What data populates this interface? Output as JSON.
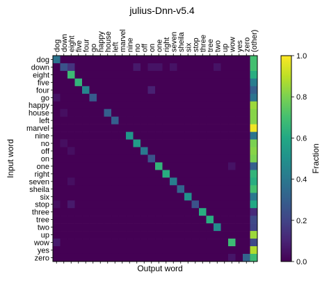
{
  "chart_data": {
    "type": "heatmap",
    "title": "julius-Dnn-v5.4",
    "xlabel": "Output word",
    "ylabel": "Input word",
    "colorbar_label": "Fraction",
    "colormap": "viridis",
    "clim": [
      0,
      1
    ],
    "colorbar_ticks": [
      "0.0",
      "0.2",
      "0.4",
      "0.6",
      "0.8",
      "1.0"
    ],
    "x_labels": [
      "dog",
      "down",
      "eight",
      "five",
      "four",
      "go",
      "happy",
      "house",
      "left",
      "marvel",
      "nine",
      "no",
      "off",
      "on",
      "one",
      "right",
      "seven",
      "sheila",
      "six",
      "stop",
      "three",
      "tree",
      "two",
      "up",
      "wow",
      "yes",
      "zero",
      "(other)"
    ],
    "y_labels": [
      "dog",
      "down",
      "eight",
      "five",
      "four",
      "go",
      "happy",
      "house",
      "left",
      "marvel",
      "nine",
      "no",
      "off",
      "on",
      "one",
      "right",
      "seven",
      "sheila",
      "six",
      "stop",
      "three",
      "tree",
      "two",
      "up",
      "wow",
      "yes",
      "zero"
    ],
    "diagonal": [
      0.38,
      0.25,
      0.68,
      0.65,
      0.45,
      0.28,
      0.0,
      0.3,
      0.3,
      0.0,
      0.52,
      0.55,
      0.4,
      0.25,
      0.65,
      0.62,
      0.42,
      0.32,
      0.5,
      0.25,
      0.62,
      0.62,
      0.48,
      0.0,
      0.68,
      0.0,
      0.32
    ],
    "other": [
      0.7,
      0.7,
      0.62,
      0.42,
      0.3,
      0.38,
      0.85,
      0.82,
      0.82,
      0.98,
      0.38,
      0.8,
      0.82,
      0.8,
      0.3,
      0.65,
      0.62,
      0.7,
      0.4,
      0.6,
      0.12,
      0.22,
      0.2,
      0.85,
      0.22,
      0.88,
      0.68
    ],
    "off_diagonal": [
      {
        "row": "down",
        "col": "eight",
        "value": 0.15
      },
      {
        "row": "down",
        "col": "no",
        "value": 0.07
      },
      {
        "row": "down",
        "col": "on",
        "value": 0.05
      },
      {
        "row": "down",
        "col": "one",
        "value": 0.05
      },
      {
        "row": "down",
        "col": "seven",
        "value": 0.05
      },
      {
        "row": "down",
        "col": "two",
        "value": 0.05
      },
      {
        "row": "go",
        "col": "dog",
        "value": 0.05
      },
      {
        "row": "four",
        "col": "on",
        "value": 0.09
      },
      {
        "row": "house",
        "col": "down",
        "value": 0.04
      },
      {
        "row": "seven",
        "col": "eight",
        "value": 0.04
      },
      {
        "row": "stop",
        "col": "eight",
        "value": 0.07
      },
      {
        "row": "stop",
        "col": "dog",
        "value": 0.04
      },
      {
        "row": "wow",
        "col": "dog",
        "value": 0.07
      },
      {
        "row": "zero",
        "col": "wow",
        "value": 0.06
      },
      {
        "row": "one",
        "col": "wow",
        "value": 0.05
      },
      {
        "row": "no",
        "col": "down",
        "value": 0.04
      },
      {
        "row": "off",
        "col": "eight",
        "value": 0.04
      }
    ]
  }
}
